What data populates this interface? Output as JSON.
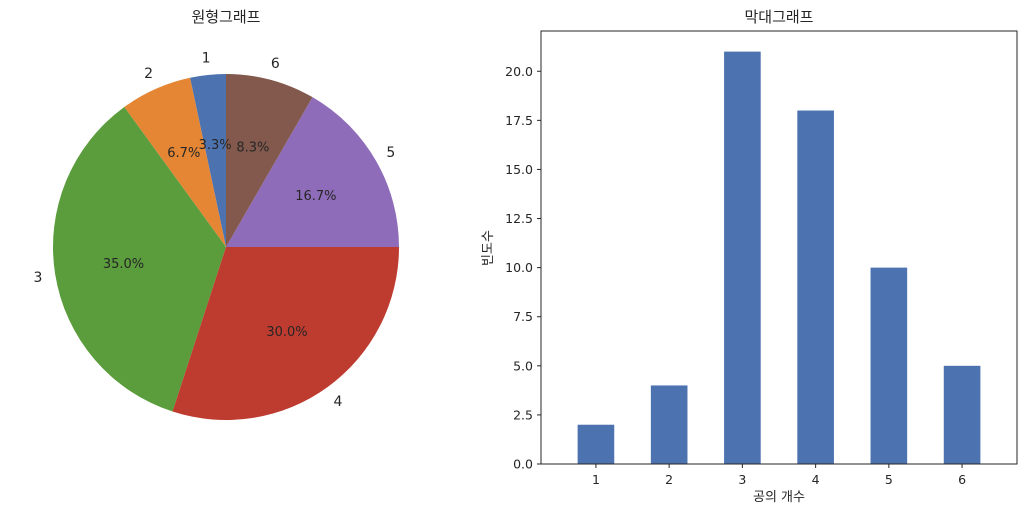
{
  "chart_data": [
    {
      "type": "pie",
      "title": "원형그래프",
      "categories": [
        "1",
        "2",
        "3",
        "4",
        "5",
        "6"
      ],
      "values": [
        2,
        4,
        21,
        18,
        10,
        5
      ],
      "percent_labels": [
        "3.3%",
        "6.7%",
        "35.0%",
        "30.0%",
        "16.7%",
        "8.3%"
      ],
      "colors": [
        "#4c72b0",
        "#e48634",
        "#5b9d3d",
        "#be3b2f",
        "#8e6cb9",
        "#82594c"
      ],
      "start_angle_deg": 90,
      "direction": "counterclockwise"
    },
    {
      "type": "bar",
      "title": "막대그래프",
      "categories": [
        "1",
        "2",
        "3",
        "4",
        "5",
        "6"
      ],
      "values": [
        2,
        4,
        21,
        18,
        10,
        5
      ],
      "xlabel": "공의 개수",
      "ylabel": "빈도수",
      "ylim": [
        0,
        22.05
      ],
      "yticks": [
        0.0,
        2.5,
        5.0,
        7.5,
        10.0,
        12.5,
        15.0,
        17.5,
        20.0
      ],
      "ytick_labels": [
        "0.0",
        "2.5",
        "5.0",
        "7.5",
        "10.0",
        "12.5",
        "15.0",
        "17.5",
        "20.0"
      ],
      "color": "#4c72b0",
      "grid": false
    }
  ]
}
